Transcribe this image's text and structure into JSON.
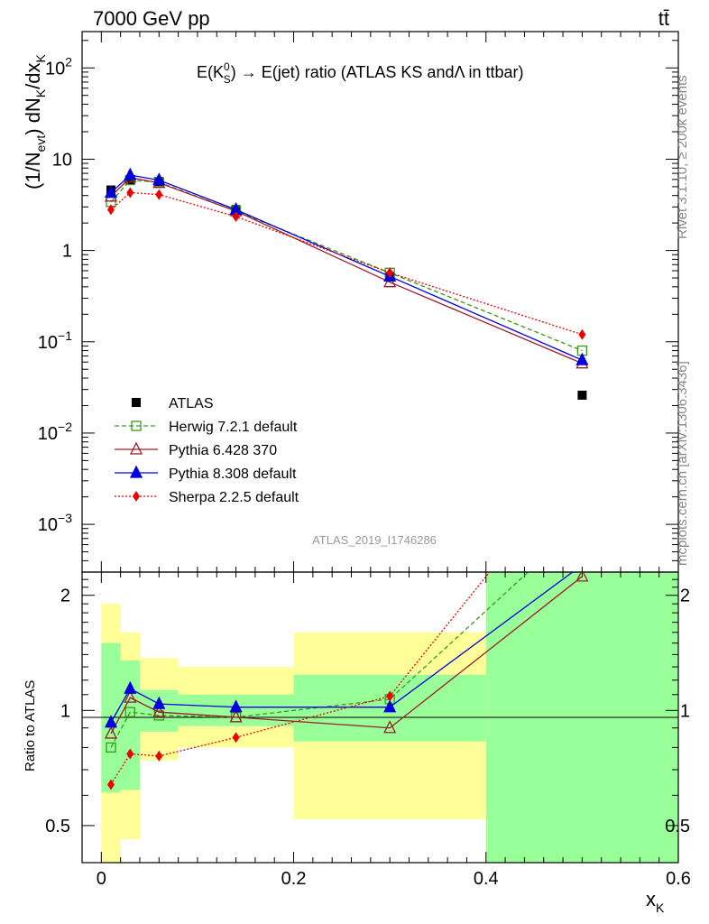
{
  "header": {
    "left": "7000 GeV pp",
    "right": "tt̄"
  },
  "side": {
    "rivet": "Rivet 3.1.10, ≥ 200k events",
    "mcplots": "mcplots.cern.ch [arXiv:1306.3436]"
  },
  "watermark": "ATLAS_2019_I1746286",
  "title": {
    "pre": "E(K",
    "sup": "0",
    "sub": "S",
    "post": ") → E(jet) ratio (ATLAS KS andΛ in ttbar)"
  },
  "ylabel_top": {
    "a": "(1/N",
    "b": "evt",
    "c": ") dN",
    "d": "K",
    "e": "/dx",
    "f": "K"
  },
  "ylabel_bottom": "Ratio to ATLAS",
  "xlabel": {
    "main": "x",
    "sub": "K"
  },
  "colors": {
    "ATLAS": "#000000",
    "Herwig": "#3a9a1a",
    "Pythia6": "#9b1c2a",
    "Pythia8": "#0000dd",
    "Sherpa": "#ee0000",
    "band_green": "#99ff99",
    "band_yellow": "#ffff99"
  },
  "chart_data": {
    "type": "line",
    "x_range": [
      -0.02,
      0.6
    ],
    "x_ticks": [
      "0",
      "0.2",
      "0.4",
      "0.6"
    ],
    "top": {
      "y_scale": "log",
      "ylim": [
        0.0003,
        250
      ],
      "y_ticks": [
        {
          "value": 0.001,
          "base": "10",
          "exp": "−3"
        },
        {
          "value": 0.01,
          "base": "10",
          "exp": "−2"
        },
        {
          "value": 0.1,
          "base": "10",
          "exp": "−1"
        },
        {
          "value": 1,
          "base": "1",
          "exp": ""
        },
        {
          "value": 10,
          "base": "10",
          "exp": ""
        },
        {
          "value": 100,
          "base": "10",
          "exp": "2"
        }
      ]
    },
    "bottom": {
      "y_scale": "log",
      "ylim": [
        0.4,
        2.3
      ],
      "y_ticks": [
        {
          "value": 0.5,
          "label": "0.5"
        },
        {
          "value": 1,
          "label": "1"
        },
        {
          "value": 2,
          "label": "2"
        }
      ]
    },
    "bins": [
      0,
      0.02,
      0.04,
      0.08,
      0.2,
      0.4,
      0.6
    ],
    "x": [
      0.01,
      0.03,
      0.06,
      0.14,
      0.3,
      0.5
    ],
    "series": [
      {
        "name": "ATLAS",
        "style": "data",
        "marker": "square-filled",
        "values": [
          4.6,
          5.9,
          5.7,
          2.8,
          0.52,
          0.026
        ]
      },
      {
        "name": "Herwig 7.2.1 default",
        "style": "dashed",
        "marker": "square-open",
        "values": [
          3.4,
          5.9,
          5.6,
          2.7,
          0.57,
          0.08
        ],
        "ratio": [
          0.8,
          0.99,
          0.97,
          0.96,
          1.07,
          3.1
        ]
      },
      {
        "name": "Pythia 6.428 370",
        "style": "solid",
        "marker": "triangle-open",
        "values": [
          3.9,
          6.3,
          5.5,
          2.7,
          0.45,
          0.058
        ],
        "ratio": [
          0.87,
          1.08,
          0.99,
          0.96,
          0.9,
          2.24
        ]
      },
      {
        "name": "Pythia 8.308 default",
        "style": "solid",
        "marker": "triangle-filled",
        "values": [
          4.3,
          6.7,
          5.9,
          2.8,
          0.52,
          0.063
        ],
        "ratio": [
          0.93,
          1.14,
          1.04,
          1.02,
          1.02,
          2.4
        ]
      },
      {
        "name": "Sherpa 2.2.5 default",
        "style": "dotted",
        "marker": "diamond-filled",
        "values": [
          2.8,
          4.3,
          4.1,
          2.35,
          0.57,
          0.12
        ],
        "ratio": [
          0.64,
          0.77,
          0.76,
          0.85,
          1.09,
          4.6
        ]
      }
    ],
    "bands": {
      "green": [
        [
          0.61,
          1.5
        ],
        [
          0.62,
          1.35
        ],
        [
          0.88,
          1.13
        ],
        [
          0.91,
          1.1
        ],
        [
          0.83,
          1.24
        ],
        [
          0.2,
          2.3
        ]
      ],
      "yellow": [
        [
          0.38,
          1.9
        ],
        [
          0.46,
          1.6
        ],
        [
          0.74,
          1.37
        ],
        [
          0.8,
          1.3
        ],
        [
          0.52,
          1.6
        ],
        [
          0.2,
          2.3
        ]
      ]
    }
  }
}
